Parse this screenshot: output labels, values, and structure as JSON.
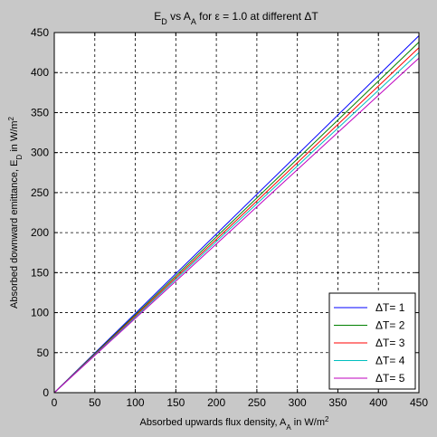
{
  "chart_data": {
    "type": "line",
    "title": {
      "parts": [
        {
          "text": "E",
          "sub": false
        },
        {
          "text": "D",
          "sub": true
        },
        {
          "text": " vs A",
          "sub": false
        },
        {
          "text": "A",
          "sub": true
        },
        {
          "text": " for ε = 1.0 at different ΔT",
          "sub": false
        }
      ]
    },
    "xlabel": {
      "parts": [
        {
          "text": "Absorbed upwards flux density, A",
          "sub": false
        },
        {
          "text": "A",
          "sub": true
        },
        {
          "text": " in W/m",
          "sub": false
        },
        {
          "text": "2",
          "sup": true
        }
      ]
    },
    "ylabel": {
      "parts": [
        {
          "text": "Absorbed downward emittance, E",
          "sub": false
        },
        {
          "text": "D",
          "sub": true
        },
        {
          "text": " in W/m",
          "sub": false
        },
        {
          "text": "2",
          "sup": true
        }
      ]
    },
    "xlim": [
      0,
      450
    ],
    "ylim": [
      0,
      450
    ],
    "xticks": [
      0,
      50,
      100,
      150,
      200,
      250,
      300,
      350,
      400,
      450
    ],
    "yticks": [
      0,
      50,
      100,
      150,
      200,
      250,
      300,
      350,
      400,
      450
    ],
    "grid": true,
    "legend_position": "bottom-right",
    "series": [
      {
        "name": "ΔT= 1",
        "color": "#0000ff",
        "x": [
          0,
          450
        ],
        "y": [
          0,
          446
        ]
      },
      {
        "name": "ΔT= 2",
        "color": "#008000",
        "x": [
          0,
          450
        ],
        "y": [
          0,
          438
        ]
      },
      {
        "name": "ΔT= 3",
        "color": "#ff0000",
        "x": [
          0,
          450
        ],
        "y": [
          0,
          431
        ]
      },
      {
        "name": "ΔT= 4",
        "color": "#00bfbf",
        "x": [
          0,
          450
        ],
        "y": [
          0,
          425
        ]
      },
      {
        "name": "ΔT= 5",
        "color": "#bf00bf",
        "x": [
          0,
          450
        ],
        "y": [
          0,
          418
        ]
      }
    ]
  }
}
